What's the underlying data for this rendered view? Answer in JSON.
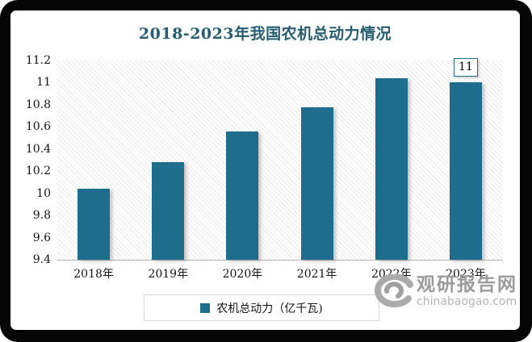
{
  "chart_data": {
    "type": "bar",
    "title": "2018-2023年我国农机总动力情况",
    "categories": [
      "2018年",
      "2019年",
      "2020年",
      "2021年",
      "2022年",
      "2023年"
    ],
    "series": [
      {
        "name": "农机总动力（亿千瓦)",
        "values": [
          10.04,
          10.28,
          10.56,
          10.78,
          11.04,
          11
        ]
      }
    ],
    "ylim": [
      9.4,
      11.2
    ],
    "yticks": [
      9.4,
      9.6,
      9.8,
      10,
      10.2,
      10.4,
      10.6,
      10.8,
      11,
      11.2
    ],
    "data_labels": [
      null,
      null,
      null,
      null,
      null,
      "11"
    ],
    "xlabel": "",
    "ylabel": "",
    "grid": false,
    "legend_position": "bottom",
    "plot_background": "diagonal-hatch",
    "bar_color": "#1F6D8C"
  },
  "legend": {
    "label": "农机总动力（亿千瓦)",
    "swatch_color": "#1F6D8C"
  },
  "watermark": {
    "site_name": "观研报告网",
    "domain": "chinabaogao.com",
    "logo": "swirl-logo"
  },
  "colors": {
    "bar": "#1F6D8C",
    "title": "#265D70",
    "frame": "#060606",
    "axis_line": "#b3b3b3",
    "hatch_line": "#e9e9e9",
    "watermark_gray": "#9b9b9b"
  }
}
